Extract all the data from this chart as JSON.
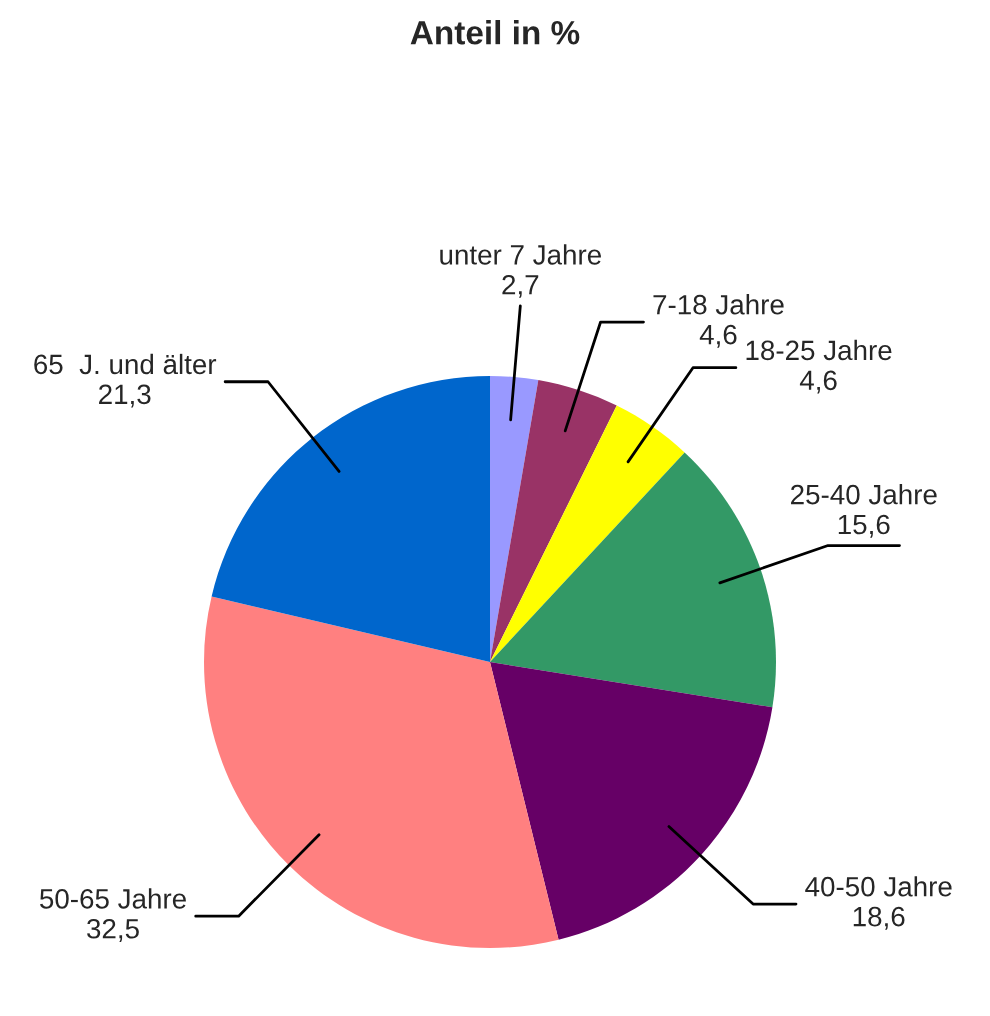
{
  "chart_data": {
    "type": "pie",
    "title": "Anteil in %",
    "categories": [
      "unter 7 Jahre",
      "7-18 Jahre",
      "18-25 Jahre",
      "25-40 Jahre",
      "40-50 Jahre",
      "50-65 Jahre",
      "65  J. und älter"
    ],
    "values": [
      2.7,
      4.6,
      4.6,
      15.6,
      18.6,
      32.5,
      21.3
    ],
    "value_labels": [
      "2,7",
      "4,6",
      "4,6",
      "15,6",
      "18,6",
      "32,5",
      "21,3"
    ],
    "colors": [
      "#9999ff",
      "#993366",
      "#ffff00",
      "#339966",
      "#660066",
      "#ff8080",
      "#0066cc"
    ]
  }
}
